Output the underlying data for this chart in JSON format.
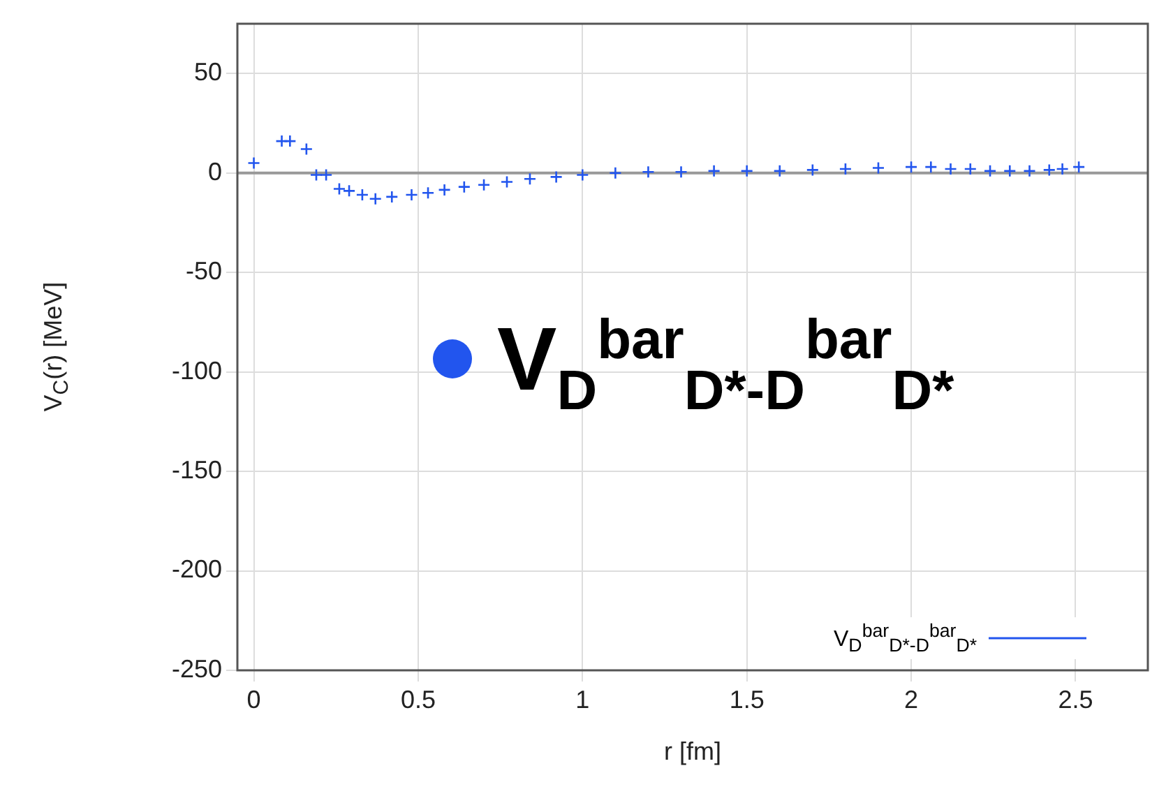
{
  "chart_data": {
    "type": "scatter",
    "xlabel": "r [fm]",
    "ylabel": "V$_{C}$(r) [MeV]",
    "x": [
      0,
      0.085,
      0.11,
      0.16,
      0.19,
      0.22,
      0.26,
      0.29,
      0.33,
      0.37,
      0.42,
      0.48,
      0.53,
      0.58,
      0.64,
      0.7,
      0.77,
      0.84,
      0.92,
      1.0,
      1.1,
      1.2,
      1.3,
      1.4,
      1.5,
      1.6,
      1.7,
      1.8,
      1.9,
      2.0,
      2.06,
      2.12,
      2.18,
      2.24,
      2.3,
      2.36,
      2.42,
      2.46,
      2.51
    ],
    "series": [
      {
        "name": "V$_{D}$$^{bar}$$_{D*-D}$$^{bar}$$_{D*}$",
        "color": "#2255ee",
        "values": [
          5,
          16,
          16,
          12,
          -1,
          -1,
          -8,
          -9,
          -11,
          -13,
          -12,
          -11,
          -10,
          -8.5,
          -7,
          -6,
          -4.5,
          -3,
          -2,
          -1,
          0,
          0.5,
          0.5,
          1,
          1,
          1,
          1.5,
          2,
          2.5,
          3,
          3,
          2,
          2,
          1,
          1,
          1,
          1.5,
          2,
          3
        ]
      }
    ],
    "xlim": [
      -0.05,
      2.72
    ],
    "ylim": [
      -250,
      75
    ],
    "xticks": [
      0,
      0.5,
      1,
      1.5,
      2,
      2.5
    ],
    "yticks": [
      -250,
      -200,
      -150,
      -100,
      -50,
      0,
      50
    ],
    "ref_lines": [
      {
        "axis": "y",
        "value": 0,
        "color": "#999999"
      }
    ],
    "annotations": [
      "V$_{D}$$^{bar}$$_{D*-D}$$^{bar}$$_{D*}$"
    ],
    "grid": true,
    "legend": "bottom right",
    "marker": "cross"
  }
}
